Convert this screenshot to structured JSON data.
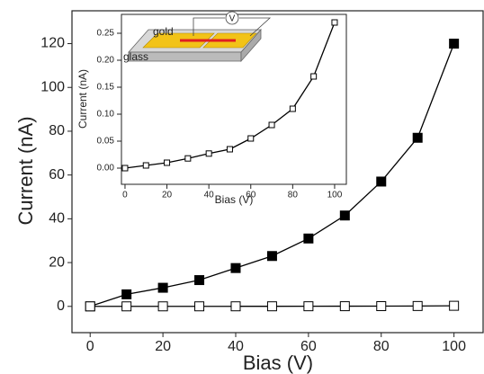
{
  "chart_data": [
    {
      "type": "line",
      "x_label": "Bias (V)",
      "y_label": "Current (nA)",
      "x": [
        0,
        10,
        20,
        30,
        40,
        50,
        60,
        70,
        80,
        90,
        100
      ],
      "series": [
        {
          "color": "#000000",
          "marker": "filled",
          "values": [
            0,
            5.5,
            8.5,
            12,
            17.5,
            23,
            31,
            41.5,
            57,
            77,
            120
          ]
        },
        {
          "color": "#000000",
          "marker": "open",
          "values": [
            0,
            0.005,
            0.01,
            0.018,
            0.027,
            0.035,
            0.055,
            0.08,
            0.11,
            0.17,
            0.27
          ]
        }
      ],
      "xlim": [
        -5,
        108
      ],
      "ylim": [
        -12,
        135
      ],
      "xticks": [
        0,
        20,
        40,
        60,
        80,
        100
      ],
      "yticks": [
        0,
        20,
        40,
        60,
        80,
        100,
        120
      ]
    },
    {
      "type": "line",
      "x_label": "Bias (V)",
      "y_label": "Current (nA)",
      "annotations": [
        "gold",
        "glass",
        "V"
      ],
      "x": [
        0,
        10,
        20,
        30,
        40,
        50,
        60,
        70,
        80,
        90,
        100
      ],
      "series": [
        {
          "color": "#000000",
          "marker": "open",
          "values": [
            0,
            0.005,
            0.01,
            0.018,
            0.027,
            0.035,
            0.055,
            0.08,
            0.11,
            0.17,
            0.27
          ]
        }
      ],
      "xlim": [
        -1.7,
        105.6
      ],
      "ylim": [
        -0.03,
        0.285
      ],
      "xticks": [
        0,
        20,
        40,
        60,
        80,
        100
      ],
      "yticks": [
        {
          "value": 0,
          "label": "0.00"
        },
        {
          "value": 0.05,
          "label": "0.05"
        },
        {
          "value": 0.1,
          "label": "0.10"
        },
        {
          "value": 0.15,
          "label": "0.15"
        },
        {
          "value": 0.2,
          "label": "0.20"
        },
        {
          "value": 0.25,
          "label": "0.25"
        }
      ]
    }
  ]
}
